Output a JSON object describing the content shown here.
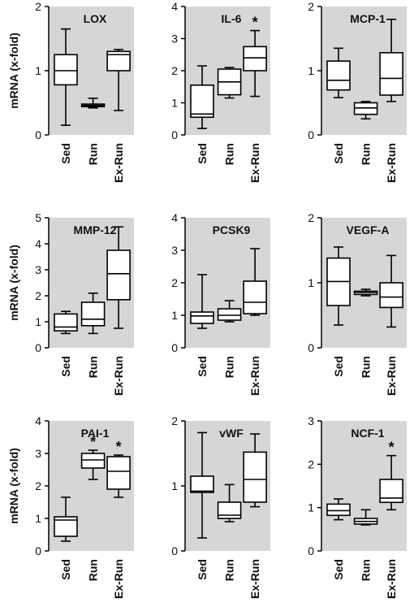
{
  "chart_data": [
    {
      "type": "boxplot",
      "title": "LOX",
      "ylabel": "mRNA (x-fold)",
      "ylim": [
        0,
        2
      ],
      "yticks": [
        0,
        1,
        2
      ],
      "categories": [
        "Sed",
        "Run",
        "Ex-Run"
      ],
      "boxes": [
        {
          "min": 0.15,
          "q1": 0.78,
          "median": 1.0,
          "q3": 1.25,
          "max": 1.65,
          "annotation": ""
        },
        {
          "min": 0.42,
          "q1": 0.44,
          "median": 0.46,
          "q3": 0.48,
          "max": 0.57,
          "annotation": ""
        },
        {
          "min": 0.38,
          "q1": 1.0,
          "median": 1.25,
          "q3": 1.3,
          "max": 1.33,
          "annotation": ""
        }
      ]
    },
    {
      "type": "boxplot",
      "title": "IL-6",
      "ylabel": "",
      "ylim": [
        0,
        4
      ],
      "yticks": [
        0,
        1,
        2,
        3,
        4
      ],
      "categories": [
        "Sed",
        "Run",
        "Ex-Run"
      ],
      "boxes": [
        {
          "min": 0.2,
          "q1": 0.55,
          "median": 0.65,
          "q3": 1.55,
          "max": 2.15,
          "annotation": ""
        },
        {
          "min": 1.15,
          "q1": 1.25,
          "median": 1.65,
          "q3": 2.05,
          "max": 2.1,
          "annotation": ""
        },
        {
          "min": 1.2,
          "q1": 2.0,
          "median": 2.4,
          "q3": 2.75,
          "max": 3.25,
          "annotation": "*"
        }
      ]
    },
    {
      "type": "boxplot",
      "title": "MCP-1",
      "ylabel": "",
      "ylim": [
        0,
        2
      ],
      "yticks": [
        0,
        1,
        2
      ],
      "categories": [
        "Sed",
        "Run",
        "Ex-Run"
      ],
      "boxes": [
        {
          "min": 0.58,
          "q1": 0.7,
          "median": 0.85,
          "q3": 1.15,
          "max": 1.35,
          "annotation": ""
        },
        {
          "min": 0.25,
          "q1": 0.32,
          "median": 0.42,
          "q3": 0.5,
          "max": 0.52,
          "annotation": ""
        },
        {
          "min": 0.52,
          "q1": 0.62,
          "median": 0.88,
          "q3": 1.28,
          "max": 1.8,
          "annotation": ""
        }
      ]
    },
    {
      "type": "boxplot",
      "title": "MMP-12",
      "ylabel": "mRNA (x-fold)",
      "ylim": [
        0,
        5
      ],
      "yticks": [
        0,
        1,
        2,
        3,
        4,
        5
      ],
      "categories": [
        "Sed",
        "Run",
        "Ex-Run"
      ],
      "boxes": [
        {
          "min": 0.55,
          "q1": 0.65,
          "median": 0.8,
          "q3": 1.3,
          "max": 1.4,
          "annotation": ""
        },
        {
          "min": 0.55,
          "q1": 0.85,
          "median": 1.1,
          "q3": 1.75,
          "max": 2.1,
          "annotation": ""
        },
        {
          "min": 0.75,
          "q1": 1.85,
          "median": 2.85,
          "q3": 3.75,
          "max": 4.65,
          "annotation": ""
        }
      ]
    },
    {
      "type": "boxplot",
      "title": "PCSK9",
      "ylabel": "",
      "ylim": [
        0,
        4
      ],
      "yticks": [
        0,
        1,
        2,
        3,
        4
      ],
      "categories": [
        "Sed",
        "Run",
        "Ex-Run"
      ],
      "boxes": [
        {
          "min": 0.6,
          "q1": 0.75,
          "median": 0.98,
          "q3": 1.1,
          "max": 2.25,
          "annotation": ""
        },
        {
          "min": 0.8,
          "q1": 0.85,
          "median": 1.0,
          "q3": 1.2,
          "max": 1.45,
          "annotation": ""
        },
        {
          "min": 1.0,
          "q1": 1.05,
          "median": 1.4,
          "q3": 2.05,
          "max": 3.05,
          "annotation": ""
        }
      ]
    },
    {
      "type": "boxplot",
      "title": "VEGF-A",
      "ylabel": "",
      "ylim": [
        0,
        2
      ],
      "yticks": [
        0,
        1,
        2
      ],
      "categories": [
        "Sed",
        "Run",
        "Ex-Run"
      ],
      "boxes": [
        {
          "min": 0.35,
          "q1": 0.65,
          "median": 1.02,
          "q3": 1.38,
          "max": 1.55,
          "annotation": ""
        },
        {
          "min": 0.8,
          "q1": 0.82,
          "median": 0.85,
          "q3": 0.87,
          "max": 0.9,
          "annotation": ""
        },
        {
          "min": 0.32,
          "q1": 0.62,
          "median": 0.78,
          "q3": 1.0,
          "max": 1.42,
          "annotation": ""
        }
      ]
    },
    {
      "type": "boxplot",
      "title": "PAI-1",
      "ylabel": "mRNA (x-fold)",
      "ylim": [
        0,
        4
      ],
      "yticks": [
        0,
        1,
        2,
        3,
        4
      ],
      "categories": [
        "Sed",
        "Run",
        "Ex-Run"
      ],
      "boxes": [
        {
          "min": 0.3,
          "q1": 0.45,
          "median": 0.95,
          "q3": 1.05,
          "max": 1.65,
          "annotation": ""
        },
        {
          "min": 2.2,
          "q1": 2.55,
          "median": 2.8,
          "q3": 3.0,
          "max": 3.1,
          "annotation": "*"
        },
        {
          "min": 1.65,
          "q1": 1.9,
          "median": 2.45,
          "q3": 2.9,
          "max": 2.95,
          "annotation": "*"
        }
      ]
    },
    {
      "type": "boxplot",
      "title": "vWF",
      "ylabel": "",
      "ylim": [
        0,
        2
      ],
      "yticks": [
        0,
        1,
        2
      ],
      "categories": [
        "Sed",
        "Run",
        "Ex-Run"
      ],
      "boxes": [
        {
          "min": 0.2,
          "q1": 0.9,
          "median": 0.92,
          "q3": 1.15,
          "max": 1.82,
          "annotation": ""
        },
        {
          "min": 0.45,
          "q1": 0.5,
          "median": 0.55,
          "q3": 0.75,
          "max": 1.02,
          "annotation": ""
        },
        {
          "min": 0.68,
          "q1": 0.75,
          "median": 1.1,
          "q3": 1.52,
          "max": 1.8,
          "annotation": ""
        }
      ]
    },
    {
      "type": "boxplot",
      "title": "NCF-1",
      "ylabel": "",
      "ylim": [
        0,
        3
      ],
      "yticks": [
        0,
        1,
        2,
        3
      ],
      "categories": [
        "Sed",
        "Run",
        "Ex-Run"
      ],
      "boxes": [
        {
          "min": 0.72,
          "q1": 0.82,
          "median": 0.93,
          "q3": 1.08,
          "max": 1.2,
          "annotation": ""
        },
        {
          "min": 0.6,
          "q1": 0.62,
          "median": 0.68,
          "q3": 0.75,
          "max": 0.95,
          "annotation": ""
        },
        {
          "min": 0.95,
          "q1": 1.12,
          "median": 1.22,
          "q3": 1.65,
          "max": 2.2,
          "annotation": "*"
        }
      ]
    }
  ],
  "colors": {
    "panel_background": "#d6d6d6",
    "box_fill": "#ffffff",
    "stroke": "#000000"
  }
}
